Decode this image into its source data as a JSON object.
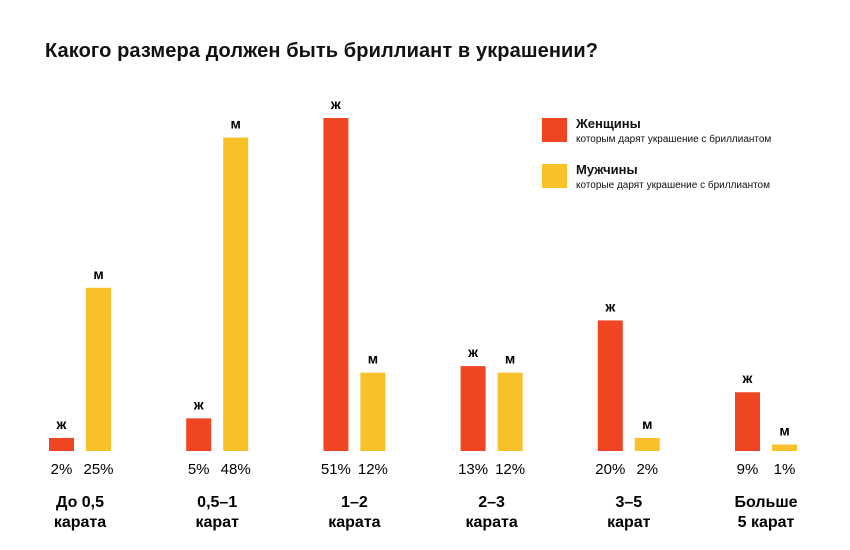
{
  "chart_data": {
    "type": "bar",
    "title": "Какого размера должен быть бриллиант в украшении?",
    "categories": [
      "До 0,5 карата",
      "0,5–1 карат",
      "1–2 карата",
      "2–3 карата",
      "3–5 карат",
      "Больше 5 карат"
    ],
    "category_lines": [
      [
        "До 0,5",
        "карата"
      ],
      [
        "0,5–1",
        "карат"
      ],
      [
        "1–2",
        "карата"
      ],
      [
        "2–3",
        "карата"
      ],
      [
        "3–5",
        "карат"
      ],
      [
        "Больше",
        "5 карат"
      ]
    ],
    "series": [
      {
        "name": "Женщины",
        "description": "которым дарят украшение с бриллиантом",
        "bar_label": "ж",
        "color": "#F04523",
        "values": [
          2,
          5,
          51,
          13,
          20,
          9
        ],
        "value_labels": [
          "2%",
          "5%",
          "51%",
          "13%",
          "20%",
          "9%"
        ]
      },
      {
        "name": "Мужчины",
        "description": "которые дарят украшение с бриллиантом",
        "bar_label": "м",
        "color": "#F8C12A",
        "values": [
          25,
          48,
          12,
          12,
          2,
          1
        ],
        "value_labels": [
          "25%",
          "48%",
          "12%",
          "12%",
          "2%",
          "1%"
        ]
      }
    ],
    "unit": "%",
    "ylim": [
      0,
      51
    ],
    "grid": false,
    "legend_position": "top-right"
  }
}
